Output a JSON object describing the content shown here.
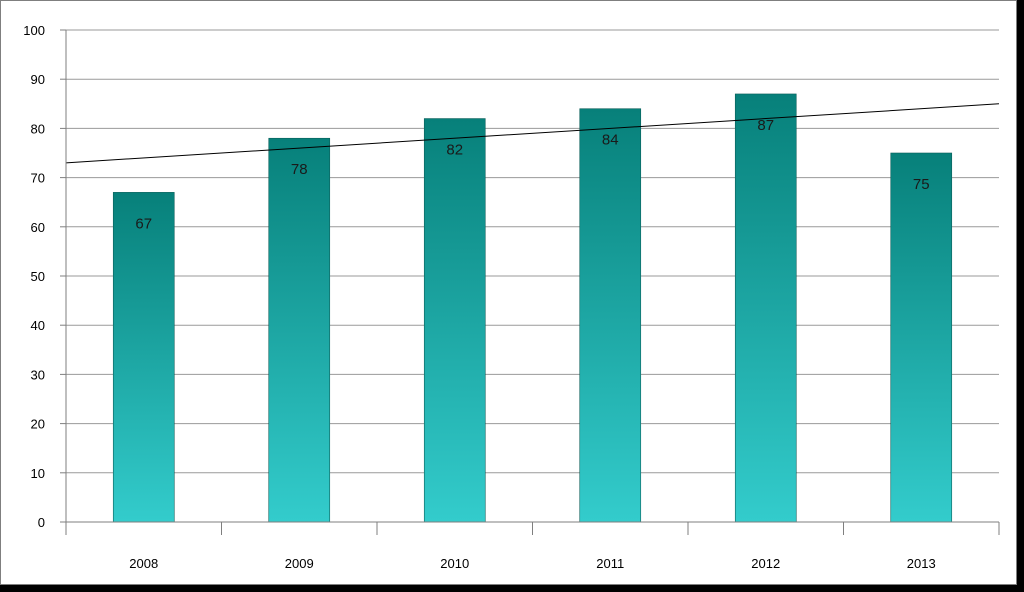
{
  "chart_data": {
    "type": "bar",
    "categories": [
      "2008",
      "2009",
      "2010",
      "2011",
      "2012",
      "2013"
    ],
    "values": [
      67,
      78,
      82,
      84,
      87,
      75
    ],
    "data_labels": [
      "67",
      "78",
      "82",
      "84",
      "87",
      "75"
    ],
    "title": "",
    "xlabel": "",
    "ylabel": "",
    "ylim": [
      0,
      100
    ],
    "yticks": [
      "0",
      "10",
      "20",
      "30",
      "40",
      "50",
      "60",
      "70",
      "80",
      "90",
      "100"
    ],
    "grid": true,
    "trendline": {
      "type": "linear",
      "start": 73,
      "end": 85
    },
    "colors": {
      "bar_top": "#07807a",
      "bar_bottom": "#33cccc",
      "grid": "#9a9a9a",
      "trendline": "#000000"
    }
  }
}
